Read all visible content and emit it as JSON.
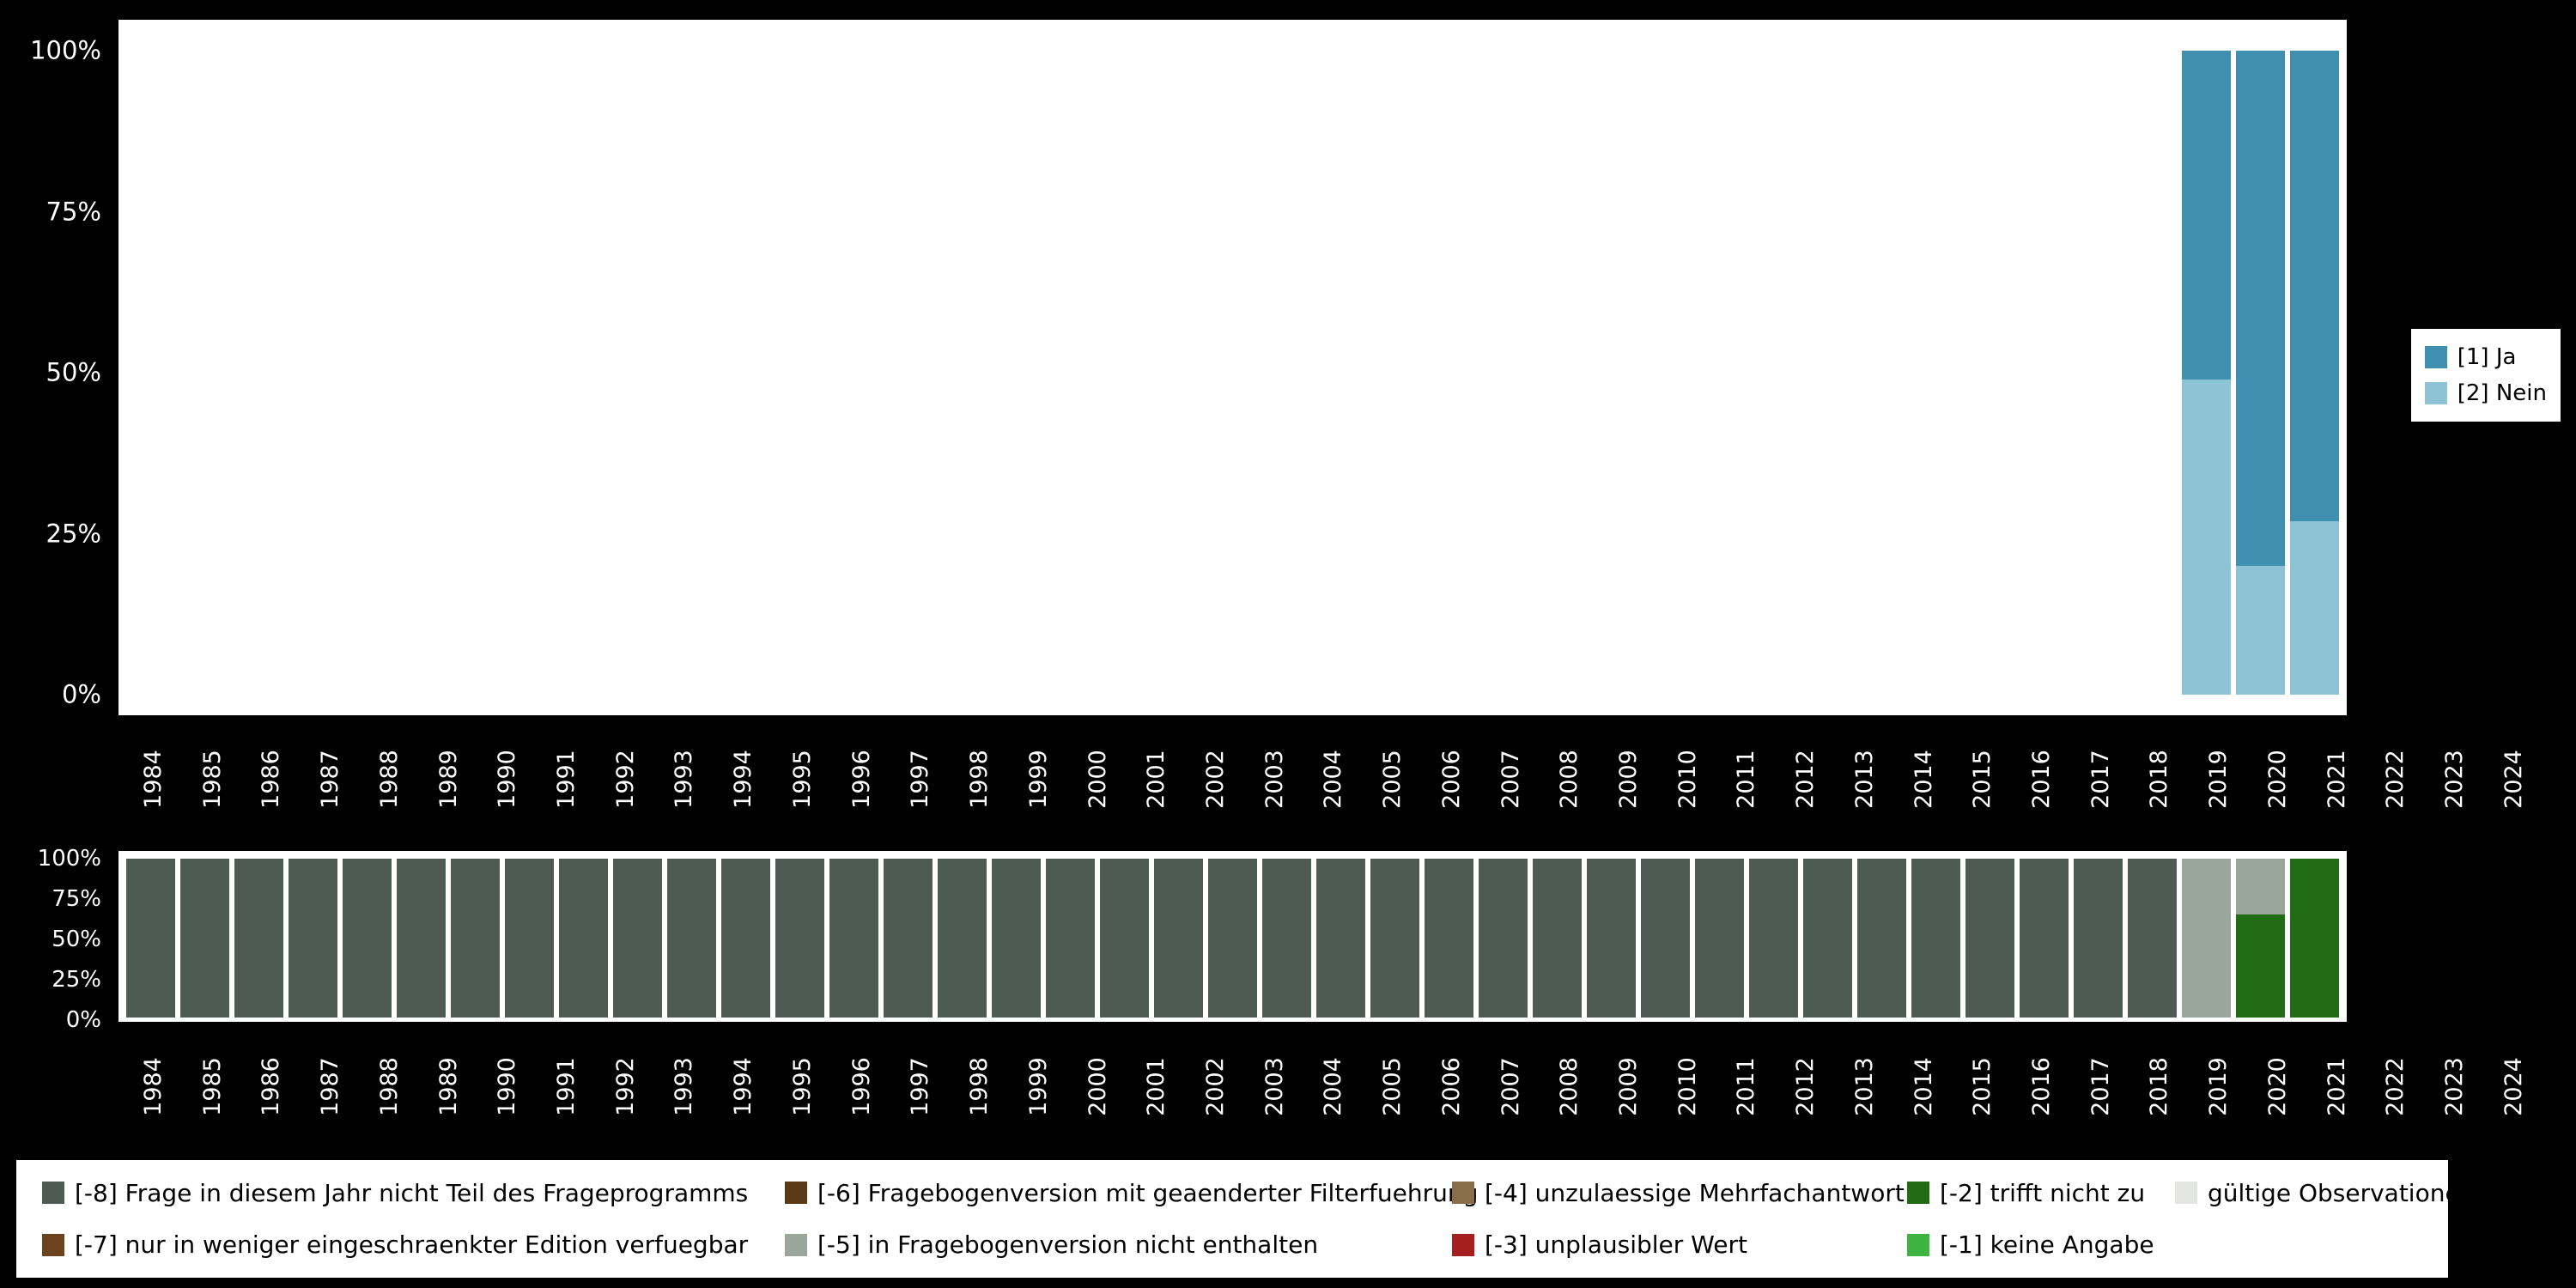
{
  "page": {
    "background": "#000000",
    "panel_background": "#ffffff",
    "axis_text_color": "#ffffff",
    "legend_text_color": "#000000"
  },
  "chart_data": [
    {
      "id": "answers-by-year",
      "type": "bar",
      "stacked": true,
      "stack_order": "top-to-bottom",
      "grid": false,
      "ylim": [
        0,
        100
      ],
      "legend_position": "right",
      "categories": [
        "1984",
        "1985",
        "1986",
        "1987",
        "1988",
        "1989",
        "1990",
        "1991",
        "1992",
        "1993",
        "1994",
        "1995",
        "1996",
        "1997",
        "1998",
        "1999",
        "2000",
        "2001",
        "2002",
        "2003",
        "2004",
        "2005",
        "2006",
        "2007",
        "2008",
        "2009",
        "2010",
        "2011",
        "2012",
        "2013",
        "2014",
        "2015",
        "2016",
        "2017",
        "2018",
        "2019",
        "2020",
        "2021",
        "2022",
        "2023",
        "2024"
      ],
      "yticks": [
        {
          "value": 0,
          "label": "0%"
        },
        {
          "value": 25,
          "label": "25%"
        },
        {
          "value": 50,
          "label": "50%"
        },
        {
          "value": 75,
          "label": "75%"
        },
        {
          "value": 100,
          "label": "100%"
        }
      ],
      "series": [
        {
          "name": "[1] Ja",
          "color": "#3f90b0",
          "values": [
            0,
            0,
            0,
            0,
            0,
            0,
            0,
            0,
            0,
            0,
            0,
            0,
            0,
            0,
            0,
            0,
            0,
            0,
            0,
            0,
            0,
            0,
            0,
            0,
            0,
            0,
            0,
            0,
            0,
            0,
            0,
            0,
            0,
            0,
            0,
            0,
            0,
            0,
            51,
            80,
            73
          ]
        },
        {
          "name": "[2] Nein",
          "color": "#8ec3d6",
          "values": [
            0,
            0,
            0,
            0,
            0,
            0,
            0,
            0,
            0,
            0,
            0,
            0,
            0,
            0,
            0,
            0,
            0,
            0,
            0,
            0,
            0,
            0,
            0,
            0,
            0,
            0,
            0,
            0,
            0,
            0,
            0,
            0,
            0,
            0,
            0,
            0,
            0,
            0,
            49,
            20,
            27
          ]
        }
      ]
    },
    {
      "id": "missings-by-year",
      "type": "bar",
      "stacked": true,
      "stack_order": "top-to-bottom",
      "grid": false,
      "ylim": [
        0,
        100
      ],
      "legend_position": "bottom",
      "categories": [
        "1984",
        "1985",
        "1986",
        "1987",
        "1988",
        "1989",
        "1990",
        "1991",
        "1992",
        "1993",
        "1994",
        "1995",
        "1996",
        "1997",
        "1998",
        "1999",
        "2000",
        "2001",
        "2002",
        "2003",
        "2004",
        "2005",
        "2006",
        "2007",
        "2008",
        "2009",
        "2010",
        "2011",
        "2012",
        "2013",
        "2014",
        "2015",
        "2016",
        "2017",
        "2018",
        "2019",
        "2020",
        "2021",
        "2022",
        "2023",
        "2024"
      ],
      "yticks": [
        {
          "value": 0,
          "label": "0%"
        },
        {
          "value": 25,
          "label": "25%"
        },
        {
          "value": 50,
          "label": "50%"
        },
        {
          "value": 75,
          "label": "75%"
        },
        {
          "value": 100,
          "label": "100%"
        }
      ],
      "series": [
        {
          "name": "[-8] Frage in diesem Jahr nicht Teil des Frageprogramms",
          "color": "#4e5a54",
          "values": [
            100,
            100,
            100,
            100,
            100,
            100,
            100,
            100,
            100,
            100,
            100,
            100,
            100,
            100,
            100,
            100,
            100,
            100,
            100,
            100,
            100,
            100,
            100,
            100,
            100,
            100,
            100,
            100,
            100,
            100,
            100,
            100,
            100,
            100,
            100,
            100,
            100,
            100,
            0,
            0,
            0
          ]
        },
        {
          "name": "[-5] in Fragebogenversion nicht enthalten",
          "color": "#9aa59c",
          "values": [
            0,
            0,
            0,
            0,
            0,
            0,
            0,
            0,
            0,
            0,
            0,
            0,
            0,
            0,
            0,
            0,
            0,
            0,
            0,
            0,
            0,
            0,
            0,
            0,
            0,
            0,
            0,
            0,
            0,
            0,
            0,
            0,
            0,
            0,
            0,
            0,
            0,
            0,
            100,
            35,
            0
          ]
        },
        {
          "name": "[-2] trifft nicht zu",
          "color": "#206b14",
          "values": [
            0,
            0,
            0,
            0,
            0,
            0,
            0,
            0,
            0,
            0,
            0,
            0,
            0,
            0,
            0,
            0,
            0,
            0,
            0,
            0,
            0,
            0,
            0,
            0,
            0,
            0,
            0,
            0,
            0,
            0,
            0,
            0,
            0,
            0,
            0,
            0,
            0,
            0,
            0,
            65,
            100
          ]
        }
      ]
    }
  ],
  "legend_right": {
    "items": [
      {
        "label": "[1] Ja",
        "color": "#3f90b0"
      },
      {
        "label": "[2] Nein",
        "color": "#8ec3d6"
      }
    ]
  },
  "legend_bottom": {
    "rows": [
      [
        {
          "label": "[-8] Frage in diesem Jahr nicht Teil des Frageprogramms",
          "color": "#4e5a54"
        },
        {
          "label": "[-6] Fragebogenversion mit geaenderter Filterfuehrung",
          "color": "#5a3a15"
        },
        {
          "label": "[-4] unzulaessige Mehrfachantwort",
          "color": "#8a6d4a"
        },
        {
          "label": "[-2] trifft nicht zu",
          "color": "#206b14"
        },
        {
          "label": "gültige Observationen",
          "color": "#e4e6e4"
        }
      ],
      [
        {
          "label": "[-7] nur in weniger eingeschraenkter Edition verfuegbar",
          "color": "#6b431f"
        },
        {
          "label": "[-5] in Fragebogenversion nicht enthalten",
          "color": "#9aa59c"
        },
        {
          "label": "[-3] unplausibler Wert",
          "color": "#a41f1f"
        },
        {
          "label": "[-1] keine Angabe",
          "color": "#3fb33f"
        }
      ]
    ]
  }
}
